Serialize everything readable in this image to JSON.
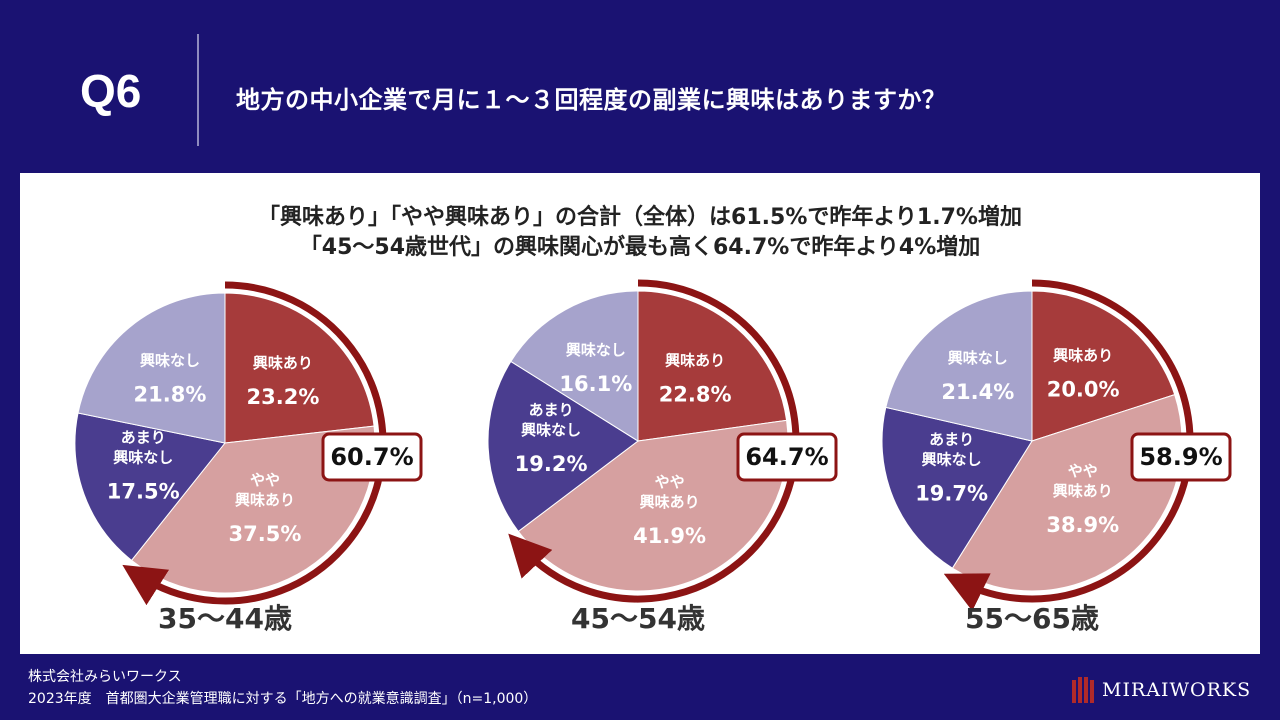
{
  "header": {
    "question_number": "Q6",
    "question_text": "地方の中小企業で月に１～３回程度の副業に興味はありますか？"
  },
  "summary": {
    "line1": "「興味あり」「やや興味あり」の合計（全体）は61.5%で昨年より1.7%増加",
    "line2": "「45～54歳世代」の興味関心が最も高く64.7%で昨年より4%増加"
  },
  "colors": {
    "background": "#1a1272",
    "interested": "#a63b3b",
    "somewhat_interested": "#d6a0a0",
    "not_very_interested": "#4a3d8f",
    "not_interested": "#a6a3cc",
    "arrow": "#8c1414",
    "total_box_border": "#8c1414"
  },
  "chart_data": [
    {
      "type": "pie",
      "title": "35～44歳",
      "total_label": "60.7%",
      "slices": [
        {
          "label": "興味あり",
          "value": 23.2,
          "display": "23.2%"
        },
        {
          "label": "やや\n興味あり",
          "value": 37.5,
          "display": "37.5%"
        },
        {
          "label": "あまり\n興味なし",
          "value": 17.5,
          "display": "17.5%"
        },
        {
          "label": "興味なし",
          "value": 21.8,
          "display": "21.8%"
        }
      ]
    },
    {
      "type": "pie",
      "title": "45～54歳",
      "total_label": "64.7%",
      "slices": [
        {
          "label": "興味あり",
          "value": 22.8,
          "display": "22.8%"
        },
        {
          "label": "やや\n興味あり",
          "value": 41.9,
          "display": "41.9%"
        },
        {
          "label": "あまり\n興味なし",
          "value": 19.2,
          "display": "19.2%"
        },
        {
          "label": "興味なし",
          "value": 16.1,
          "display": "16.1%"
        }
      ]
    },
    {
      "type": "pie",
      "title": "55～65歳",
      "total_label": "58.9%",
      "slices": [
        {
          "label": "興味あり",
          "value": 20.0,
          "display": "20.0%"
        },
        {
          "label": "やや\n興味あり",
          "value": 38.9,
          "display": "38.9%"
        },
        {
          "label": "あまり\n興味なし",
          "value": 19.7,
          "display": "19.7%"
        },
        {
          "label": "興味なし",
          "value": 21.4,
          "display": "21.4%"
        }
      ]
    }
  ],
  "footer": {
    "company": "株式会社みらいワークス",
    "source": "2023年度　首都圏大企業管理職に対する「地方への就業意識調査」（n=1,000）",
    "logo_text": "MIRAIWORKS"
  }
}
